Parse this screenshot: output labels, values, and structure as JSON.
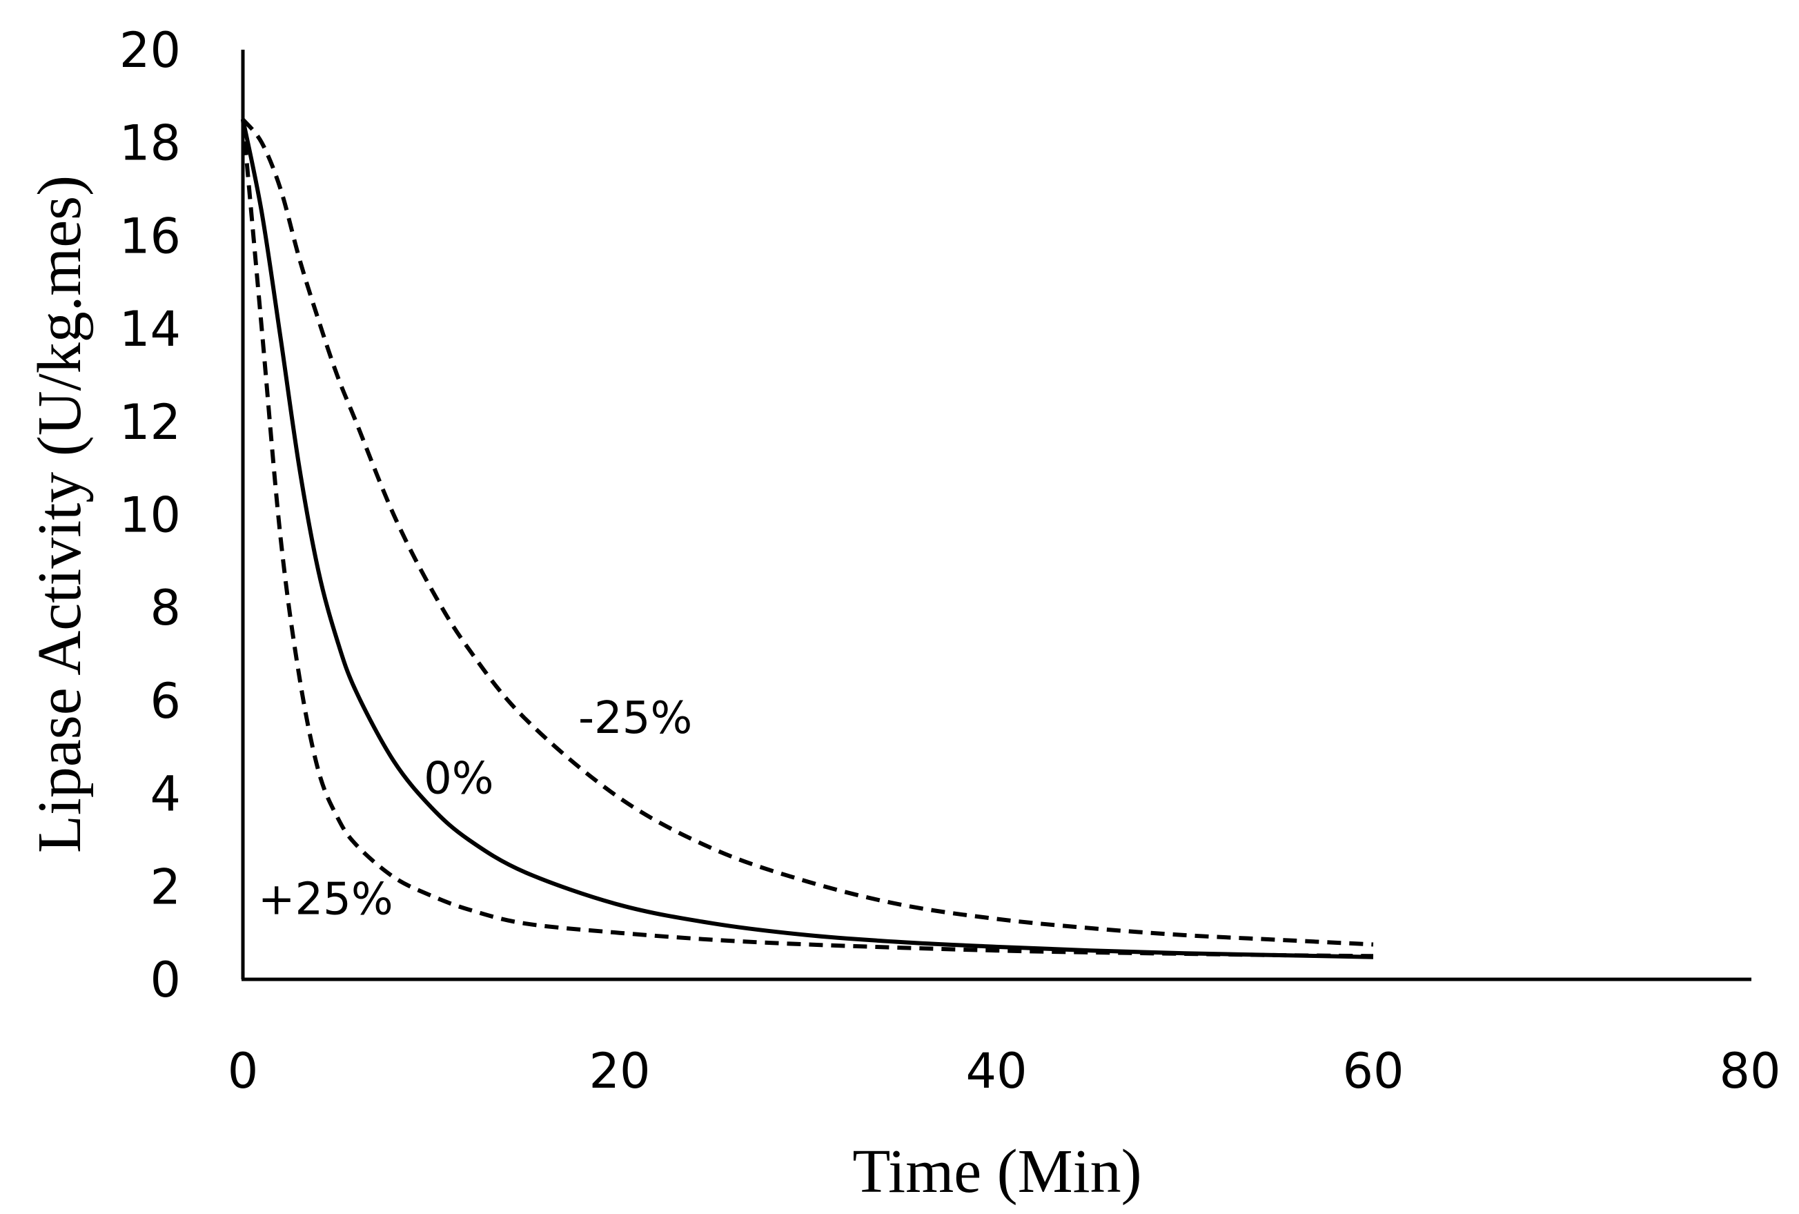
{
  "chart_data": {
    "type": "line",
    "title": "",
    "xlabel": "Time (Min)",
    "ylabel": "Lipase Activity (U/kg.mes)",
    "xlim": [
      0,
      80
    ],
    "ylim": [
      0,
      20
    ],
    "xticks": [
      0,
      20,
      40,
      60,
      80
    ],
    "yticks": [
      0,
      2,
      4,
      6,
      8,
      10,
      12,
      14,
      16,
      18,
      20
    ],
    "grid": false,
    "legend": "none",
    "x": [
      0,
      1,
      2,
      3,
      4,
      5,
      6,
      8,
      10,
      12,
      15,
      20,
      25,
      30,
      35,
      40,
      45,
      50,
      55,
      60
    ],
    "series": [
      {
        "name": "-25%",
        "style": "dashed",
        "values": [
          18.5,
          18.0,
          17.0,
          15.5,
          14.2,
          13.0,
          12.0,
          10.0,
          8.4,
          7.1,
          5.6,
          3.9,
          2.8,
          2.1,
          1.6,
          1.3,
          1.1,
          0.95,
          0.85,
          0.75
        ]
      },
      {
        "name": "0%",
        "style": "solid",
        "values": [
          18.5,
          16.5,
          13.8,
          11.0,
          8.8,
          7.3,
          6.2,
          4.7,
          3.7,
          3.0,
          2.3,
          1.6,
          1.2,
          0.95,
          0.8,
          0.7,
          0.62,
          0.56,
          0.52,
          0.48
        ]
      },
      {
        "name": "+25%",
        "style": "dashed",
        "values": [
          18.5,
          14.0,
          9.5,
          6.5,
          4.5,
          3.5,
          2.9,
          2.2,
          1.8,
          1.5,
          1.2,
          1.0,
          0.85,
          0.75,
          0.68,
          0.62,
          0.58,
          0.55,
          0.52,
          0.5
        ]
      }
    ],
    "annotations": [
      {
        "text": "-25%",
        "x": 17.8,
        "y": 5.3
      },
      {
        "text": "0%",
        "x": 9.6,
        "y": 4.0
      },
      {
        "text": "+25%",
        "x": 0.8,
        "y": 1.4
      }
    ]
  }
}
